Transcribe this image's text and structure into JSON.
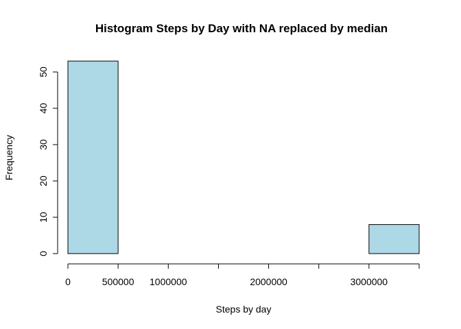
{
  "chart_data": {
    "type": "bar",
    "title": "Histogram Steps by Day with NA replaced by median",
    "xlabel": "Steps by day",
    "ylabel": "Frequency",
    "bar_color": "#add8e6",
    "bins": [
      {
        "from": 0,
        "to": 500000,
        "value": 53
      },
      {
        "from": 500000,
        "to": 1000000,
        "value": 0
      },
      {
        "from": 1000000,
        "to": 1500000,
        "value": 0
      },
      {
        "from": 1500000,
        "to": 2000000,
        "value": 0
      },
      {
        "from": 2000000,
        "to": 2500000,
        "value": 0
      },
      {
        "from": 2500000,
        "to": 3000000,
        "value": 0
      },
      {
        "from": 3000000,
        "to": 3500000,
        "value": 8
      }
    ],
    "xlim": [
      0,
      3500000
    ],
    "ylim": [
      0,
      53
    ],
    "x_ticks": [
      0,
      500000,
      1000000,
      1500000,
      2000000,
      2500000,
      3000000,
      3500000
    ],
    "x_tick_labels": [
      {
        "value": 0,
        "label": "0"
      },
      {
        "value": 500000,
        "label": "500000"
      },
      {
        "value": 1000000,
        "label": "1000000"
      },
      {
        "value": 2000000,
        "label": "2000000"
      },
      {
        "value": 3000000,
        "label": "3000000"
      }
    ],
    "y_ticks": [
      0,
      10,
      20,
      30,
      40,
      50
    ],
    "y_tick_labels": [
      "0",
      "10",
      "20",
      "30",
      "40",
      "50"
    ],
    "grid": false,
    "legend": "none"
  }
}
